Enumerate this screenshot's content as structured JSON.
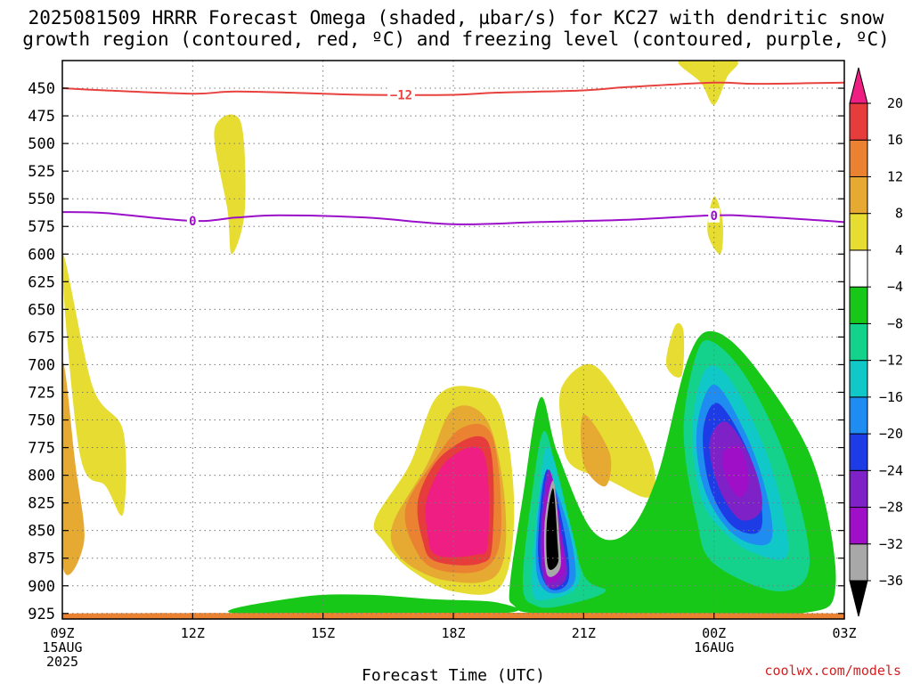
{
  "title": {
    "line1": "2025081509 HRRR Forecast Omega (shaded, µbar/s) for KC27 with dendritic snow",
    "line2": "growth region (contoured, red, ºC) and freezing level (contoured, purple, ºC)"
  },
  "credit": "coolwx.com/models",
  "colors": {
    "dgz_line": "#e8423f",
    "freezing_line": "#9b0fc9",
    "grid": "#7a7a7a"
  },
  "chart_data": {
    "type": "heatmap",
    "title": "2025081509 HRRR Forecast Omega (shaded, µbar/s) for KC27 with dendritic snow growth region (contoured, red, ºC) and freezing level (contoured, purple, ºC)",
    "xlabel": "Forecast Time (UTC)",
    "ylabel": "",
    "x_range_hours_utc": [
      9,
      27
    ],
    "y_axis": {
      "reversed": true,
      "range_hpa": [
        930,
        425
      ]
    },
    "grid": true,
    "x_ticks": [
      {
        "hour": 9,
        "lines": [
          "09Z",
          "15AUG",
          "2025"
        ]
      },
      {
        "hour": 12,
        "lines": [
          "12Z"
        ]
      },
      {
        "hour": 15,
        "lines": [
          "15Z"
        ]
      },
      {
        "hour": 18,
        "lines": [
          "18Z"
        ]
      },
      {
        "hour": 21,
        "lines": [
          "21Z"
        ]
      },
      {
        "hour": 24,
        "lines": [
          "00Z",
          "16AUG"
        ]
      },
      {
        "hour": 27,
        "lines": [
          "03Z"
        ]
      }
    ],
    "y_ticks": [
      450,
      475,
      500,
      525,
      550,
      575,
      600,
      625,
      650,
      675,
      700,
      725,
      750,
      775,
      800,
      825,
      850,
      875,
      900,
      925
    ],
    "colorbar": {
      "unit": "µbar/s",
      "labels": [
        "20",
        "16",
        "12",
        "8",
        "4",
        "−4",
        "−8",
        "−12",
        "−16",
        "−20",
        "−24",
        "−28",
        "−32",
        "−36"
      ],
      "bins": [
        {
          "from": null,
          "to": -36,
          "color": "#000000"
        },
        {
          "from": -36,
          "to": -32,
          "color": "#a8a8a8"
        },
        {
          "from": -32,
          "to": -28,
          "color": "#a00fc8"
        },
        {
          "from": -28,
          "to": -24,
          "color": "#7e22c8"
        },
        {
          "from": -24,
          "to": -20,
          "color": "#1e3ce6"
        },
        {
          "from": -20,
          "to": -16,
          "color": "#1e8cf0"
        },
        {
          "from": -16,
          "to": -12,
          "color": "#10c8c8"
        },
        {
          "from": -12,
          "to": -8,
          "color": "#14d28c"
        },
        {
          "from": -8,
          "to": -4,
          "color": "#18c818"
        },
        {
          "from": -4,
          "to": 4,
          "color": "#ffffff"
        },
        {
          "from": 4,
          "to": 8,
          "color": "#e6dc32"
        },
        {
          "from": 8,
          "to": 12,
          "color": "#e6aa32"
        },
        {
          "from": 12,
          "to": 16,
          "color": "#eb8232"
        },
        {
          "from": 16,
          "to": 20,
          "color": "#e63c3c"
        },
        {
          "from": 20,
          "to": null,
          "color": "#ee1e82"
        }
      ]
    },
    "contours": [
      {
        "name": "dendritic snow growth region",
        "label": "−12",
        "color": "#e8423f",
        "points": [
          [
            9,
            450
          ],
          [
            10,
            452
          ],
          [
            12,
            455
          ],
          [
            13,
            453
          ],
          [
            15,
            455
          ],
          [
            16,
            456
          ],
          [
            18,
            456
          ],
          [
            19,
            454
          ],
          [
            21,
            452
          ],
          [
            22,
            449
          ],
          [
            24,
            445
          ],
          [
            25,
            446
          ],
          [
            27,
            445
          ]
        ]
      },
      {
        "name": "freezing level",
        "label": "0",
        "color": "#9b0fc9",
        "points": [
          [
            9,
            562
          ],
          [
            10,
            563
          ],
          [
            12,
            570
          ],
          [
            13,
            567
          ],
          [
            14,
            565
          ],
          [
            16,
            567
          ],
          [
            18,
            573
          ],
          [
            20,
            571
          ],
          [
            22,
            569
          ],
          [
            24,
            565
          ],
          [
            25,
            566
          ],
          [
            27,
            571
          ]
        ]
      }
    ],
    "shaded_regions": [
      {
        "value_bin": "4 to 8",
        "points": [
          [
            9,
            600
          ],
          [
            9.4,
            780
          ],
          [
            10,
            810
          ],
          [
            10.4,
            835
          ],
          [
            10.4,
            760
          ],
          [
            9.7,
            720
          ]
        ]
      },
      {
        "value_bin": "4 to 8",
        "points": [
          [
            12.5,
            488
          ],
          [
            12.8,
            560
          ],
          [
            12.9,
            600
          ],
          [
            13.2,
            560
          ],
          [
            13.1,
            480
          ]
        ]
      },
      {
        "value_bin": "4 to 8",
        "points": [
          [
            24,
            548
          ],
          [
            23.85,
            580
          ],
          [
            24.15,
            600
          ],
          [
            24.2,
            570
          ]
        ]
      },
      {
        "value_bin": "4 to 8",
        "points": [
          [
            23.1,
            665
          ],
          [
            22.9,
            700
          ],
          [
            23.25,
            710
          ],
          [
            23.3,
            670
          ]
        ]
      },
      {
        "value_bin": "4 to 8",
        "points": [
          [
            23.2,
            425
          ],
          [
            23.7,
            445
          ],
          [
            24,
            465
          ],
          [
            24.3,
            440
          ],
          [
            24.5,
            425
          ]
        ]
      },
      {
        "value_bin": "4 to 8",
        "points": [
          [
            16.2,
            840
          ],
          [
            17,
            790
          ],
          [
            17.6,
            730
          ],
          [
            18.4,
            720
          ],
          [
            19.1,
            740
          ],
          [
            19.4,
            830
          ],
          [
            19.1,
            900
          ],
          [
            18,
            905
          ],
          [
            17,
            885
          ],
          [
            16.4,
            860
          ]
        ]
      },
      {
        "value_bin": "4 to 8",
        "points": [
          [
            20.5,
            720
          ],
          [
            21.2,
            700
          ],
          [
            22,
            740
          ],
          [
            22.6,
            790
          ],
          [
            22.5,
            820
          ],
          [
            21.6,
            805
          ],
          [
            20.7,
            790
          ],
          [
            20.5,
            760
          ]
        ]
      },
      {
        "value_bin": "8 to 12",
        "points": [
          [
            16.6,
            845
          ],
          [
            17.4,
            790
          ],
          [
            18,
            740
          ],
          [
            18.8,
            752
          ],
          [
            19.2,
            830
          ],
          [
            19,
            890
          ],
          [
            17.8,
            895
          ],
          [
            16.8,
            875
          ]
        ]
      },
      {
        "value_bin": "8 to 12",
        "points": [
          [
            9,
            700
          ],
          [
            9.3,
            790
          ],
          [
            9.5,
            860
          ],
          [
            9,
            880
          ]
        ]
      },
      {
        "value_bin": "8 to 12",
        "points": [
          [
            21,
            745
          ],
          [
            21.6,
            780
          ],
          [
            21.5,
            810
          ],
          [
            21,
            790
          ]
        ]
      },
      {
        "value_bin": "12 to 16",
        "points": [
          [
            16.9,
            830
          ],
          [
            17.5,
            790
          ],
          [
            18.2,
            757
          ],
          [
            18.9,
            765
          ],
          [
            19.1,
            850
          ],
          [
            18.7,
            885
          ],
          [
            17.6,
            885
          ],
          [
            17.1,
            865
          ]
        ]
      },
      {
        "value_bin": "16 to 20",
        "points": [
          [
            17.2,
            820
          ],
          [
            17.8,
            780
          ],
          [
            18.8,
            770
          ],
          [
            18.9,
            860
          ],
          [
            18.6,
            880
          ],
          [
            17.6,
            878
          ],
          [
            17.3,
            860
          ]
        ]
      },
      {
        "value_bin": ">20",
        "points": [
          [
            17.4,
            820
          ],
          [
            17.9,
            785
          ],
          [
            18.7,
            780
          ],
          [
            18.8,
            860
          ],
          [
            18.5,
            872
          ],
          [
            17.6,
            872
          ],
          [
            17.4,
            850
          ]
        ]
      },
      {
        "value_bin": "-8 to -4",
        "points": [
          [
            19.3,
            900
          ],
          [
            19.6,
            820
          ],
          [
            20,
            730
          ],
          [
            20.4,
            780
          ],
          [
            21.2,
            850
          ],
          [
            22,
            852
          ],
          [
            22.7,
            800
          ],
          [
            23.4,
            695
          ],
          [
            24,
            670
          ],
          [
            25,
            705
          ],
          [
            26.3,
            790
          ],
          [
            26.8,
            900
          ],
          [
            26,
            925
          ],
          [
            23,
            925
          ],
          [
            20,
            925
          ],
          [
            19.4,
            918
          ]
        ]
      },
      {
        "value_bin": "-8 to -4",
        "points": [
          [
            13,
            925
          ],
          [
            14.5,
            910
          ],
          [
            16,
            908
          ],
          [
            17.5,
            912
          ],
          [
            19,
            915
          ],
          [
            19,
            925
          ]
        ]
      },
      {
        "value_bin": "-12 to -8",
        "points": [
          [
            19.6,
            900
          ],
          [
            19.8,
            820
          ],
          [
            20.1,
            760
          ],
          [
            20.5,
            820
          ],
          [
            21,
            890
          ],
          [
            21.5,
            905
          ],
          [
            20.5,
            918
          ],
          [
            19.9,
            918
          ]
        ]
      },
      {
        "value_bin": "-12 to -8",
        "points": [
          [
            23.3,
            760
          ],
          [
            23.6,
            690
          ],
          [
            24,
            680
          ],
          [
            24.8,
            715
          ],
          [
            25.7,
            790
          ],
          [
            26.2,
            880
          ],
          [
            25.5,
            905
          ],
          [
            24,
            880
          ],
          [
            23.6,
            840
          ]
        ]
      },
      {
        "value_bin": "-16 to -12",
        "points": [
          [
            19.8,
            900
          ],
          [
            20,
            805
          ],
          [
            20.2,
            775
          ],
          [
            20.6,
            830
          ],
          [
            20.9,
            895
          ],
          [
            20.2,
            912
          ]
        ]
      },
      {
        "value_bin": "-16 to -12",
        "points": [
          [
            23.5,
            760
          ],
          [
            23.8,
            705
          ],
          [
            24.4,
            715
          ],
          [
            25.3,
            790
          ],
          [
            25.7,
            870
          ],
          [
            24.9,
            870
          ],
          [
            24.2,
            850
          ],
          [
            23.7,
            820
          ]
        ]
      },
      {
        "value_bin": "-20 to -16",
        "points": [
          [
            19.9,
            880
          ],
          [
            20.1,
            800
          ],
          [
            20.6,
            840
          ],
          [
            20.8,
            895
          ],
          [
            20.2,
            906
          ]
        ]
      },
      {
        "value_bin": "-20 to -16",
        "points": [
          [
            23.6,
            760
          ],
          [
            24,
            718
          ],
          [
            24.7,
            760
          ],
          [
            25.2,
            815
          ],
          [
            25.3,
            860
          ],
          [
            24.5,
            855
          ],
          [
            23.8,
            815
          ]
        ]
      },
      {
        "value_bin": "-24 to -20",
        "points": [
          [
            19.95,
            870
          ],
          [
            20.15,
            795
          ],
          [
            20.55,
            850
          ],
          [
            20.65,
            895
          ],
          [
            20.2,
            902
          ]
        ]
      },
      {
        "value_bin": "-24 to -20",
        "points": [
          [
            23.75,
            760
          ],
          [
            24.1,
            735
          ],
          [
            24.8,
            780
          ],
          [
            25.1,
            830
          ],
          [
            25,
            852
          ],
          [
            24.4,
            845
          ],
          [
            23.9,
            810
          ]
        ]
      },
      {
        "value_bin": "-28 to -24",
        "points": [
          [
            20,
            860
          ],
          [
            20.2,
            795
          ],
          [
            20.5,
            855
          ],
          [
            20.6,
            893
          ],
          [
            20.15,
            900
          ]
        ]
      },
      {
        "value_bin": "-28 to -24",
        "points": [
          [
            23.9,
            770
          ],
          [
            24.3,
            752
          ],
          [
            24.9,
            790
          ],
          [
            25.1,
            830
          ],
          [
            24.6,
            840
          ],
          [
            24.1,
            810
          ]
        ]
      },
      {
        "value_bin": "-32 to -28",
        "points": [
          [
            20.05,
            850
          ],
          [
            20.25,
            800
          ],
          [
            20.5,
            858
          ],
          [
            20.55,
            888
          ],
          [
            20.15,
            895
          ]
        ]
      },
      {
        "value_bin": "-32 to -28",
        "points": [
          [
            24.2,
            780
          ],
          [
            24.6,
            775
          ],
          [
            24.8,
            805
          ],
          [
            24.6,
            820
          ],
          [
            24.3,
            805
          ]
        ]
      },
      {
        "value_bin": "-36 to -32",
        "points": [
          [
            20.1,
            845
          ],
          [
            20.3,
            805
          ],
          [
            20.45,
            860
          ],
          [
            20.45,
            885
          ],
          [
            20.15,
            889
          ]
        ]
      },
      {
        "value_bin": "<-36",
        "points": [
          [
            20.15,
            845
          ],
          [
            20.3,
            812
          ],
          [
            20.4,
            862
          ],
          [
            20.4,
            880
          ],
          [
            20.18,
            883
          ]
        ]
      },
      {
        "value_bin": "12 to 16",
        "points": [
          [
            9,
            925
          ],
          [
            27,
            925
          ],
          [
            27,
            930
          ],
          [
            9,
            930
          ]
        ]
      }
    ]
  }
}
